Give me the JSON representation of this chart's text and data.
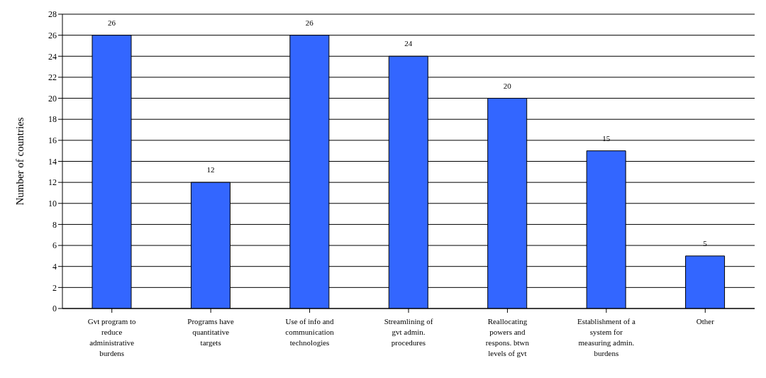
{
  "chart_data": {
    "type": "bar",
    "ylabel": "Number of countries",
    "categories": [
      "Gvt program to reduce administrative burdens",
      "Programs have quantitative targets",
      "Use of info and communication technologies",
      "Streamlining of gvt admin. procedures",
      "Reallocating powers and respons. btwn levels of gvt",
      "Establishment of a system for measuring admin. burdens",
      "Other"
    ],
    "values": [
      26,
      12,
      26,
      24,
      20,
      15,
      5
    ],
    "color": "#3366ff",
    "ylim": [
      0,
      28
    ],
    "yticks": [
      0,
      2,
      4,
      6,
      8,
      10,
      12,
      14,
      16,
      18,
      20,
      22,
      24,
      26,
      28
    ],
    "grid": "y",
    "data_labels": true
  }
}
